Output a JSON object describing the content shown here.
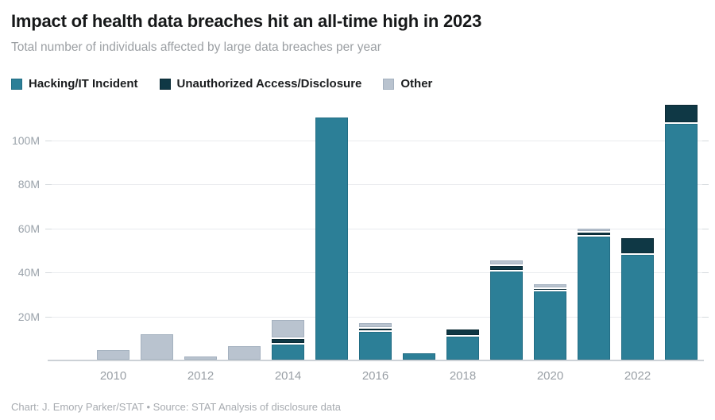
{
  "header": {
    "title": "Impact of health data breaches hit an all-time high in 2023",
    "subtitle": "Total number of individuals affected by large data breaches per year"
  },
  "footer": {
    "credit": "Chart: J. Emory Parker/STAT • Source: STAT Analysis of disclosure data"
  },
  "colors": {
    "hacking": "#2c7f97",
    "hacking_border": "#226d84",
    "unauthorized": "#0f3845",
    "unauthorized_border": "#0b2a35",
    "other": "#b9c3cf",
    "other_border": "#a4b1bf",
    "gridline": "#e9ebee",
    "axis_line": "#ccd1d6",
    "axis_text": "#9aa0a6"
  },
  "chart_data": {
    "type": "bar",
    "stacked": true,
    "title": "Impact of health data breaches hit an all-time high in 2023",
    "subtitle": "Total number of individuals affected by large data breaches per year",
    "unit": "millions of individuals",
    "categories": [
      "2010",
      "2011",
      "2012",
      "2013",
      "2014",
      "2015",
      "2016",
      "2017",
      "2018",
      "2019",
      "2020",
      "2021",
      "2022",
      "2023"
    ],
    "series": [
      {
        "name": "Hacking/IT Incident",
        "color": "#2c7f97",
        "border": "#226d84",
        "values": [
          0,
          0,
          0,
          0,
          7,
          110,
          12.5,
          3,
          10.5,
          40,
          31,
          56,
          47.5,
          107
        ]
      },
      {
        "name": "Unauthorized Access/Disclosure",
        "color": "#0f3845",
        "border": "#0b2a35",
        "values": [
          0,
          0,
          0,
          0,
          1.5,
          0,
          1,
          0,
          2.5,
          2,
          0.5,
          1,
          7,
          8
        ]
      },
      {
        "name": "Other",
        "color": "#b9c3cf",
        "border": "#a4b1bf",
        "values": [
          4.5,
          11.5,
          1.5,
          6,
          8,
          0,
          1.5,
          0,
          0,
          1.5,
          1.2,
          1,
          0,
          0
        ]
      }
    ],
    "xlabel": "",
    "ylabel": "",
    "ylim": [
      0,
      118
    ],
    "y_tick_values": [
      20,
      40,
      60,
      80,
      100
    ],
    "y_tick_labels": [
      "20M",
      "40M",
      "60M",
      "80M",
      "100M"
    ],
    "x_tick_labels": [
      "2010",
      "2012",
      "2014",
      "2016",
      "2018",
      "2020",
      "2022"
    ],
    "grid": "horizontal",
    "legend_position": "top-left"
  }
}
